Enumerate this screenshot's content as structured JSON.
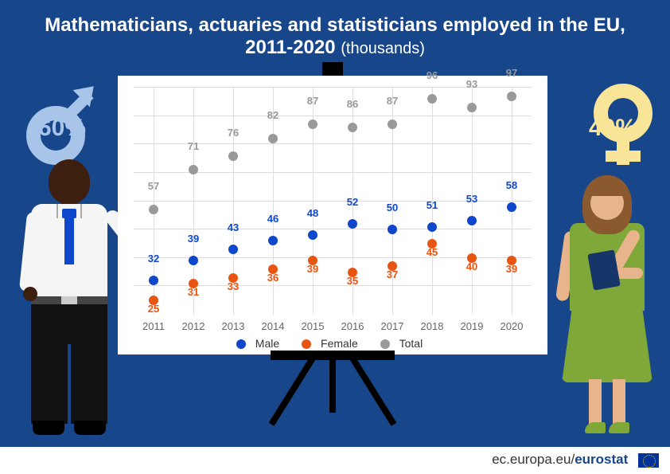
{
  "title_main": "Mathematicians, actuaries and statisticians employed in the EU,",
  "title_line2": "2011-2020",
  "title_unit": "(thousands)",
  "male_pct": "60%",
  "female_pct": "40%",
  "chart": {
    "type": "scatter",
    "years": [
      "2011",
      "2012",
      "2013",
      "2014",
      "2015",
      "2016",
      "2017",
      "2018",
      "2019",
      "2020"
    ],
    "series": {
      "male": {
        "label": "Male",
        "color": "#0e47cb",
        "values": [
          32,
          39,
          43,
          46,
          48,
          52,
          50,
          51,
          53,
          58
        ]
      },
      "female": {
        "label": "Female",
        "color": "#e85412",
        "values": [
          25,
          31,
          33,
          36,
          39,
          35,
          37,
          45,
          40,
          39
        ]
      },
      "total": {
        "label": "Total",
        "color": "#999999",
        "values": [
          57,
          71,
          76,
          82,
          87,
          86,
          87,
          96,
          93,
          97
        ]
      }
    },
    "ylim": [
      20,
      100
    ],
    "ytick_step": 10,
    "grid_color": "#dddddd",
    "background_color": "#ffffff",
    "label_fontsize": 13,
    "marker_size": 12
  },
  "legend": {
    "male": "Male",
    "female": "Female",
    "total": "Total"
  },
  "footer": {
    "domain": "ec.europa.eu/",
    "brand": "eurostat"
  }
}
